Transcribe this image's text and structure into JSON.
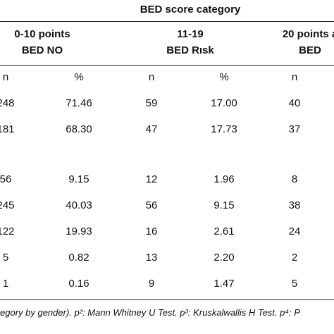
{
  "header": {
    "title": "BED score category"
  },
  "groups": [
    {
      "label": "0-10 points",
      "sublabel": "BED NO"
    },
    {
      "label": "11-19",
      "sublabel": "BED Rısk"
    },
    {
      "label": "20 points a",
      "sublabel": "BED"
    }
  ],
  "subheaders": [
    "n",
    "%",
    "n",
    "%",
    "n"
  ],
  "table": {
    "rows": [
      [
        "248",
        "71.46",
        "59",
        "17.00",
        "40"
      ],
      [
        "181",
        "68.30",
        "47",
        "17.73",
        "37"
      ],
      [
        "56",
        "9.15",
        "12",
        "1.96",
        "8"
      ],
      [
        "245",
        "40.03",
        "56",
        "9.15",
        "38"
      ],
      [
        "122",
        "19.93",
        "16",
        "2.61",
        "24"
      ],
      [
        "5",
        "0.82",
        "13",
        "2.20",
        "2"
      ],
      [
        "1",
        "0.16",
        "9",
        "1.47",
        "5"
      ]
    ]
  },
  "footer": "egory by gender). p²: Mann Whitney U Test. p³: Kruskalwallis H Test. p⁴: P"
}
